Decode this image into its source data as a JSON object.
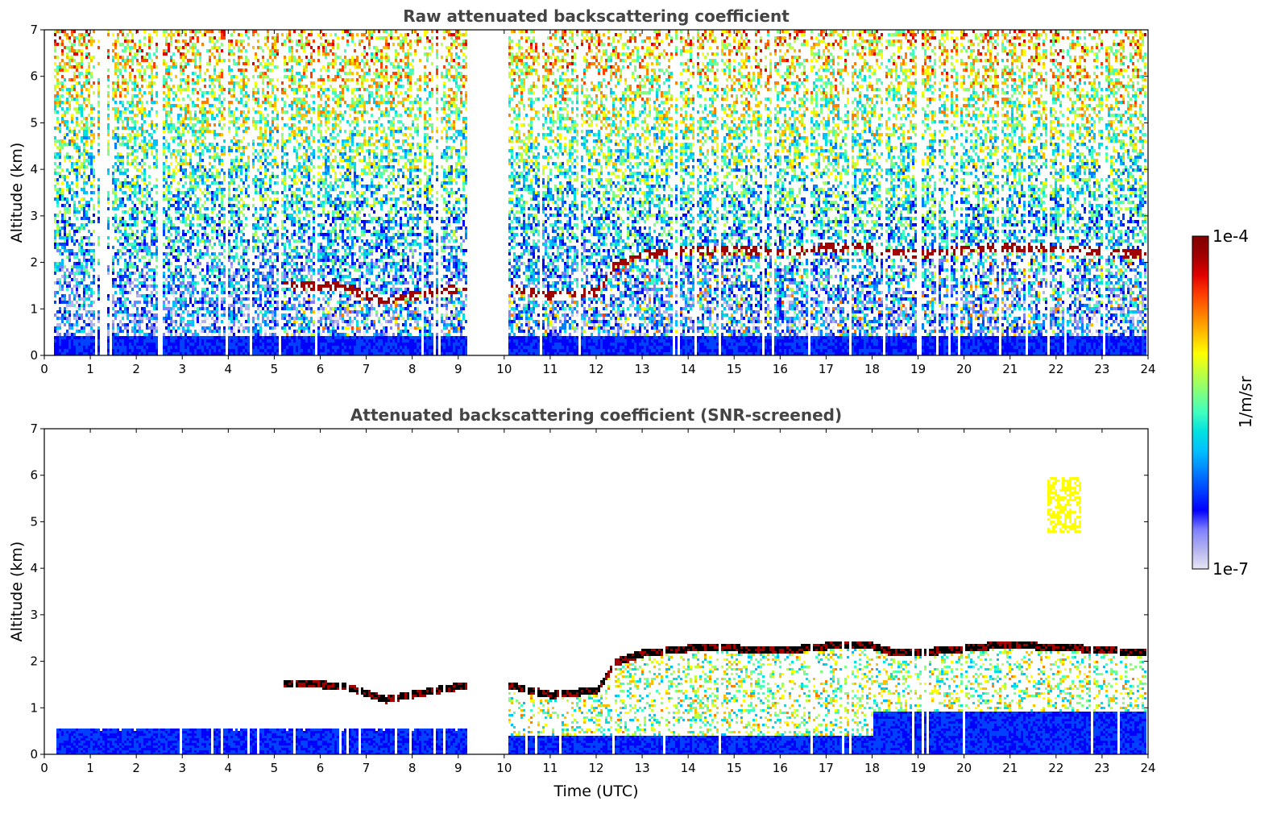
{
  "chart_data": [
    {
      "type": "heatmap",
      "title": "Raw attenuated backscattering coefficient",
      "xlabel": "",
      "ylabel": "Altitude (km)",
      "xlim": [
        0,
        24
      ],
      "ylim": [
        0,
        7
      ],
      "xticks": [
        0,
        1,
        2,
        3,
        4,
        5,
        6,
        7,
        8,
        9,
        10,
        11,
        12,
        13,
        14,
        15,
        16,
        17,
        18,
        19,
        20,
        21,
        22,
        23,
        24
      ],
      "yticks": [
        0,
        1,
        2,
        3,
        4,
        5,
        6,
        7
      ],
      "no_data_intervals": [
        [
          9.15,
          10.05
        ]
      ],
      "cloud_layer_altitude_km": [
        {
          "time": 5.2,
          "alt": 1.55
        },
        {
          "time": 6.5,
          "alt": 1.5
        },
        {
          "time": 7.4,
          "alt": 1.2
        },
        {
          "time": 8.5,
          "alt": 1.4
        },
        {
          "time": 9.1,
          "alt": 1.5
        },
        {
          "time": 10.1,
          "alt": 1.5
        },
        {
          "time": 11.0,
          "alt": 1.3
        },
        {
          "time": 12.0,
          "alt": 1.4
        },
        {
          "time": 12.4,
          "alt": 2.0
        },
        {
          "time": 13.0,
          "alt": 2.2
        },
        {
          "time": 14.0,
          "alt": 2.3
        },
        {
          "time": 15.0,
          "alt": 2.3
        },
        {
          "time": 16.0,
          "alt": 2.25
        },
        {
          "time": 17.0,
          "alt": 2.35
        },
        {
          "time": 17.8,
          "alt": 2.4
        },
        {
          "time": 18.5,
          "alt": 2.2
        },
        {
          "time": 19.5,
          "alt": 2.25
        },
        {
          "time": 20.5,
          "alt": 2.35
        },
        {
          "time": 21.5,
          "alt": 2.35
        },
        {
          "time": 22.5,
          "alt": 2.3
        },
        {
          "time": 24.0,
          "alt": 2.2
        }
      ]
    },
    {
      "type": "heatmap",
      "title": "Attenuated backscattering coefficient (SNR-screened)",
      "xlabel": "Time (UTC)",
      "ylabel": "Altitude (km)",
      "xlim": [
        0,
        24
      ],
      "ylim": [
        0,
        7
      ],
      "xticks": [
        0,
        1,
        2,
        3,
        4,
        5,
        6,
        7,
        8,
        9,
        10,
        11,
        12,
        13,
        14,
        15,
        16,
        17,
        18,
        19,
        20,
        21,
        22,
        23,
        24
      ],
      "yticks": [
        0,
        1,
        2,
        3,
        4,
        5,
        6,
        7
      ],
      "no_data_intervals": [
        [
          9.15,
          10.05
        ]
      ],
      "isolated_feature": {
        "time_range": [
          21.8,
          22.5
        ],
        "alt_range": [
          4.8,
          6.0
        ]
      }
    }
  ],
  "colorbar": {
    "label": "1/m/sr",
    "max_label": "1e-4",
    "min_label": "1e-7",
    "scale": "log",
    "range": [
      1e-07,
      0.0001
    ],
    "colors": [
      "#e6e6f5",
      "#b3b3ee",
      "#8080ff",
      "#0000ff",
      "#0040ff",
      "#0080ff",
      "#00bfff",
      "#00e0e0",
      "#40ffbf",
      "#80ff80",
      "#bfff40",
      "#ffff00",
      "#ffbf00",
      "#ff8000",
      "#ff4000",
      "#e00000",
      "#a00000",
      "#800000"
    ]
  }
}
